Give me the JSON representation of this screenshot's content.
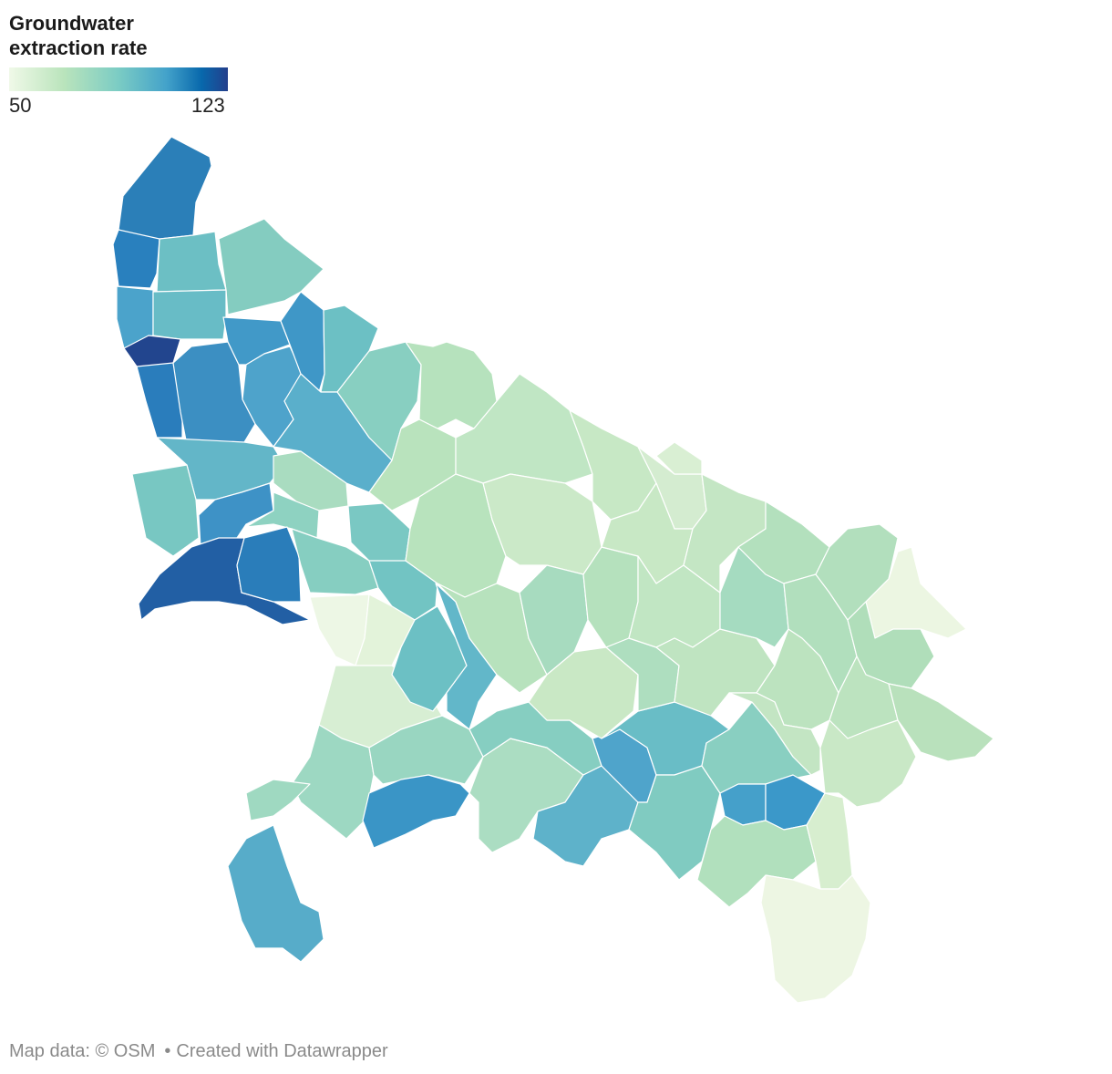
{
  "legend": {
    "title_line1": "Groundwater",
    "title_line2": "extraction rate",
    "min_label": "50",
    "max_label": "123",
    "min": 50,
    "max": 123,
    "gradient": [
      "#f0f9e8",
      "#bae4bc",
      "#7bccc4",
      "#43a2ca",
      "#0868ac",
      "#233f8c"
    ]
  },
  "footer": {
    "map_credit": "Map data: © OSM",
    "created_with": "Created with Datawrapper"
  }
}
